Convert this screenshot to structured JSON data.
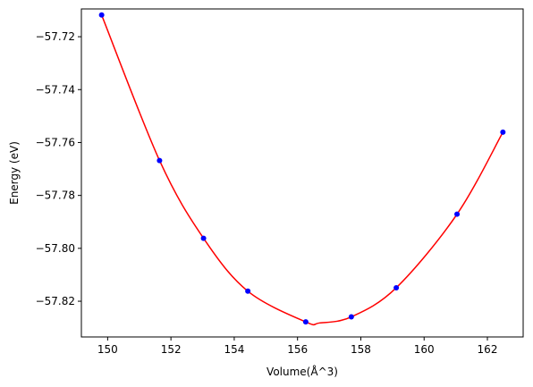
{
  "chart_data": {
    "type": "scatter",
    "title": "",
    "xlabel": "Volume(Å^3)",
    "ylabel": "Energy (eV)",
    "xlim": [
      149.17,
      163.13
    ],
    "ylim": [
      -57.8335,
      -57.7095
    ],
    "x_ticks": [
      150,
      152,
      154,
      156,
      158,
      160,
      162
    ],
    "x_tick_labels": [
      "150",
      "152",
      "154",
      "156",
      "158",
      "160",
      "162"
    ],
    "y_ticks": [
      -57.82,
      -57.8,
      -57.78,
      -57.76,
      -57.74,
      -57.72
    ],
    "y_tick_labels": [
      "−57.82",
      "−57.80",
      "−57.78",
      "−57.76",
      "−57.74",
      "−57.72"
    ],
    "grid": false,
    "series": [
      {
        "kind": "points",
        "color": "#0000ff",
        "x": [
          149.81,
          151.64,
          153.03,
          154.43,
          156.26,
          157.7,
          159.12,
          161.04,
          162.49
        ],
        "y": [
          -57.7118,
          -57.7668,
          -57.7962,
          -57.8162,
          -57.8278,
          -57.8259,
          -57.8149,
          -57.7871,
          -57.7561
        ]
      },
      {
        "kind": "fit-curve",
        "color": "#ff0000",
        "x_min": 149.81,
        "x_max": 162.49,
        "vertex_x": 156.7,
        "vertex_y": -57.8282
      }
    ]
  }
}
